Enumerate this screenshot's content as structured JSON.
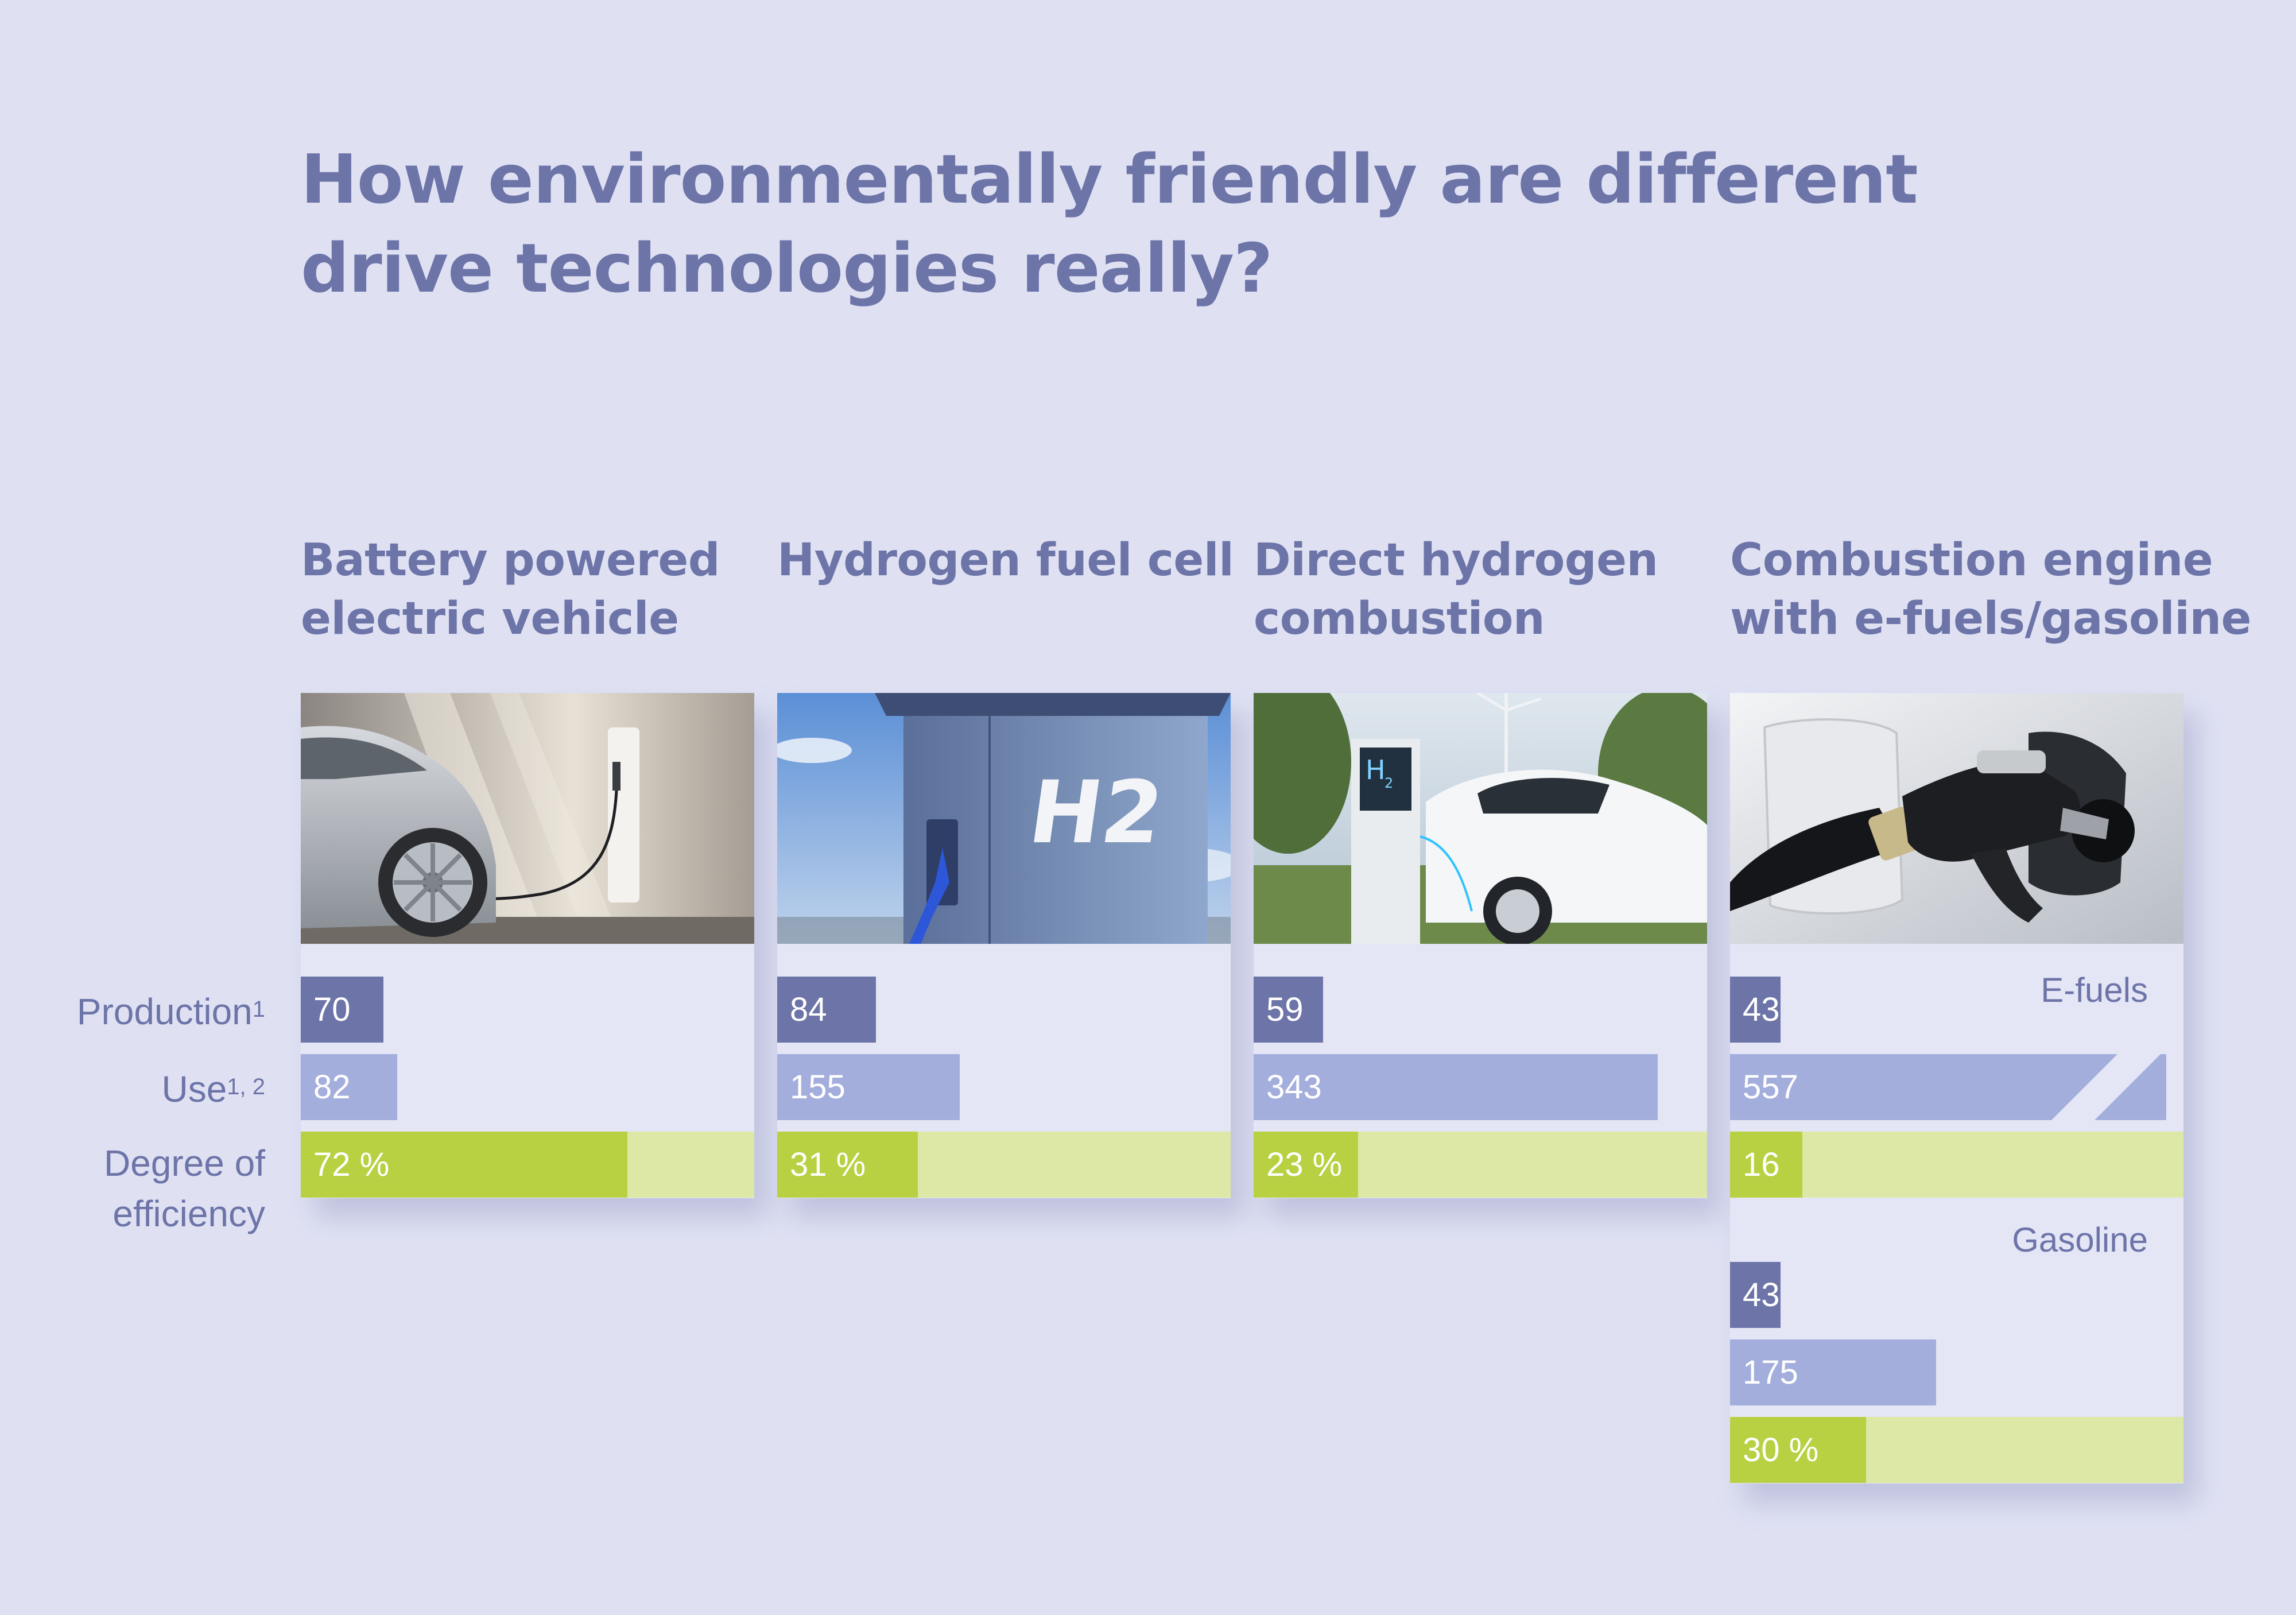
{
  "title_lines": [
    "How environmentally friendly are different",
    "drive technologies really?"
  ],
  "row_labels": {
    "production": "Production",
    "production_sup": "1",
    "use": "Use",
    "use_sup": "1, 2",
    "efficiency_lines": [
      "Degree of",
      "efficiency"
    ]
  },
  "colors": {
    "production": "#6d74a8",
    "use": "#a4aedc",
    "efficiency": "#b8d143",
    "efficiency_track": "#dde8a6",
    "background": "#dfe1f3",
    "text": "#6d74a8"
  },
  "chart_data": {
    "type": "bar",
    "title": "How environmentally friendly are different drive technologies really?",
    "orientation": "horizontal",
    "scale_max_emissions": 385,
    "groups": [
      {
        "title_lines": [
          "Battery powered",
          "electric vehicle"
        ],
        "photo_icon": "ev-charging-photo",
        "variants": [
          {
            "label": "",
            "production": 70,
            "use": 82,
            "efficiency": 72,
            "efficiency_label": "72 %",
            "efficiency_track": true,
            "use_broken": false
          }
        ]
      },
      {
        "title_lines": [
          "Hydrogen fuel cell",
          ""
        ],
        "photo_icon": "h2-station-photo",
        "variants": [
          {
            "label": "",
            "production": 84,
            "use": 155,
            "efficiency": 31,
            "efficiency_label": "31 %",
            "efficiency_track": true,
            "use_broken": false
          }
        ]
      },
      {
        "title_lines": [
          "Direct hydrogen",
          "combustion"
        ],
        "photo_icon": "hydrogen-car-photo",
        "variants": [
          {
            "label": "",
            "production": 59,
            "use": 343,
            "efficiency": 23,
            "efficiency_label": "23 %",
            "efficiency_track": true,
            "use_broken": false
          }
        ]
      },
      {
        "title_lines": [
          "Combustion engine",
          "with e-fuels/gasoline"
        ],
        "photo_icon": "fuel-nozzle-photo",
        "variants": [
          {
            "label": "E-fuels",
            "production": 43,
            "use": 557,
            "efficiency": 16,
            "efficiency_label": "16",
            "efficiency_track": true,
            "use_broken": true
          },
          {
            "label": "Gasoline",
            "production": 43,
            "use": 175,
            "efficiency": 30,
            "efficiency_label": "30 %",
            "efficiency_track": true,
            "use_broken": false
          }
        ]
      }
    ]
  }
}
